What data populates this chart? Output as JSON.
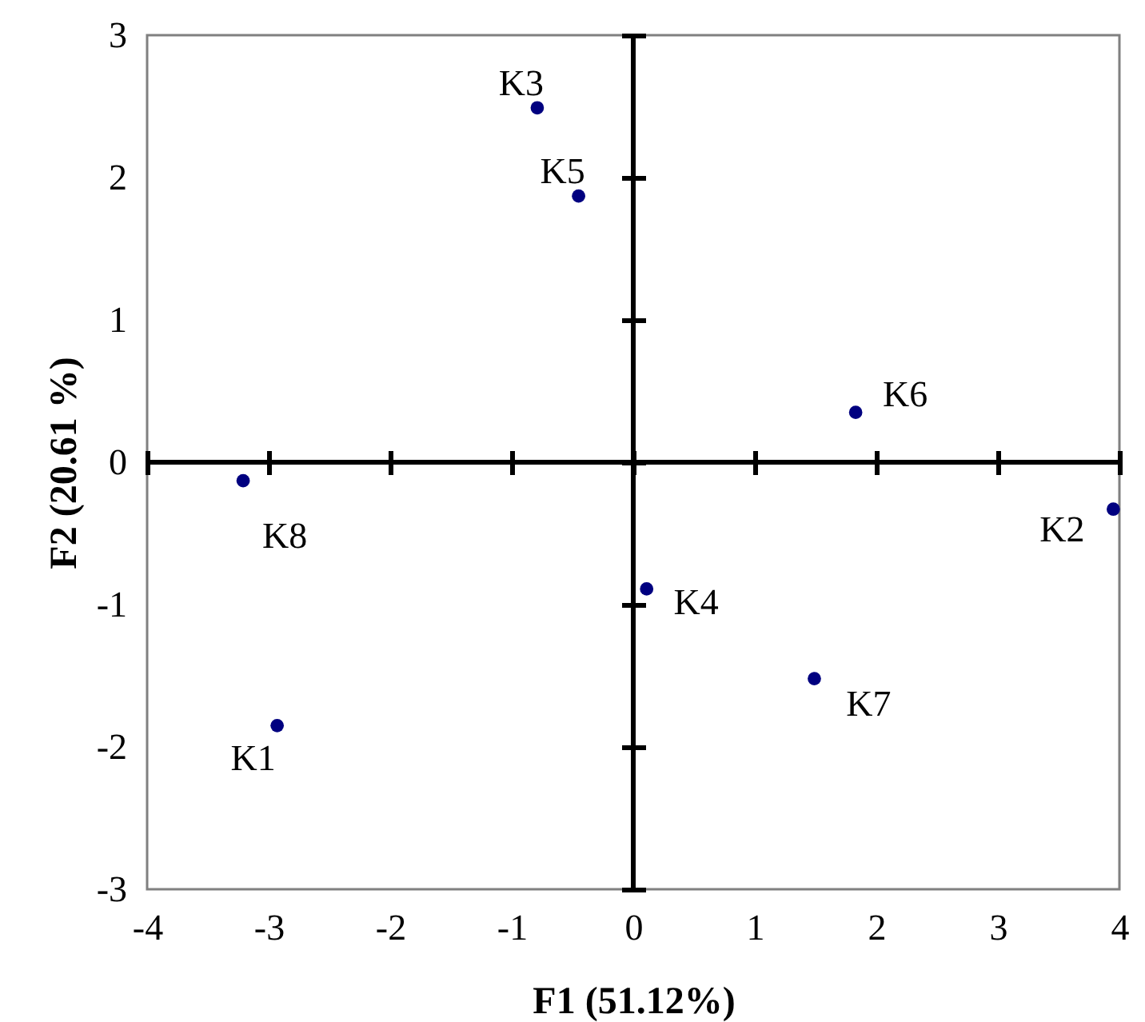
{
  "chart_data": {
    "type": "scatter",
    "xlabel": "F1 (51.12%)",
    "ylabel": "F2 (20.61 %)",
    "x": [
      -2.93,
      3.95,
      -0.79,
      0.11,
      -0.45,
      1.83,
      1.49,
      -3.21
    ],
    "series": [
      {
        "color": "#000080",
        "values": [
          -1.85,
          -0.33,
          2.49,
          -0.89,
          1.87,
          0.35,
          -1.52,
          -0.13
        ]
      }
    ],
    "xlim": [
      -4,
      4
    ],
    "ylim": [
      -3,
      3
    ],
    "xticks": [
      -4,
      -3,
      -2,
      -1,
      0,
      1,
      2,
      3,
      4
    ],
    "yticks": [
      -3,
      -2,
      -1,
      0,
      1,
      2,
      3
    ],
    "marker": "circle",
    "annotations": [
      {
        "text": "K1",
        "x": -2.93,
        "y": -1.85
      },
      {
        "text": "K2",
        "x": 3.95,
        "y": -0.33
      },
      {
        "text": "K3",
        "x": -0.79,
        "y": 2.49
      },
      {
        "text": "K4",
        "x": 0.11,
        "y": -0.89
      },
      {
        "text": "K5",
        "x": -0.45,
        "y": 1.87
      },
      {
        "text": "K6",
        "x": 1.83,
        "y": 0.35
      },
      {
        "text": "K7",
        "x": 1.49,
        "y": -1.52
      },
      {
        "text": "K8",
        "x": -3.21,
        "y": -0.13
      }
    ]
  }
}
